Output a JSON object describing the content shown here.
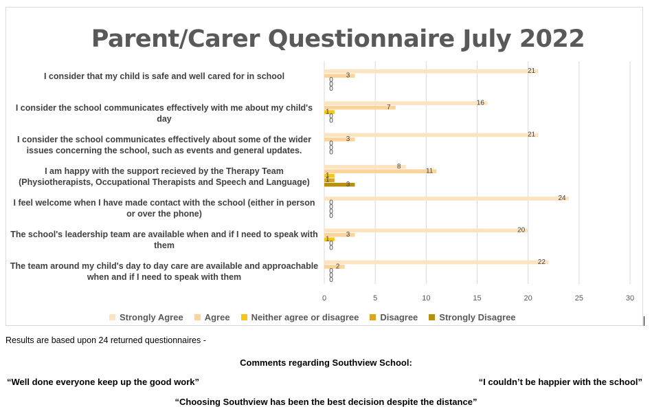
{
  "chart_data": {
    "type": "bar",
    "orientation": "horizontal",
    "title": "Parent/Carer Questionnaire July 2022",
    "categories": [
      "I consider that my child is safe and well cared for in school",
      "I consider the school communicates effectively with me about my child's day",
      "I consider the school communicates effectively about some of the wider issues concerning the school, such as events and general updates.",
      "I am happy with the support recieved by the Therapy Team (Physiotherapists, Occupational Therapists and Speech and Language)",
      "I feel welcome when I have made contact with the school (either in person or over the phone)",
      "The school's leadership team are available when and if I need to speak with them",
      "The team around my child's day to day care are available and approachable when and if I need to speak with them"
    ],
    "series": [
      {
        "name": "Strongly Agree",
        "color": "#fde3c0",
        "values": [
          21,
          16,
          21,
          8,
          24,
          20,
          22
        ]
      },
      {
        "name": "Agree",
        "color": "#fcd39a",
        "values": [
          3,
          7,
          3,
          11,
          0,
          3,
          2
        ]
      },
      {
        "name": "Neither agree or disagree",
        "color": "#f5c518",
        "values": [
          0,
          1,
          0,
          1,
          0,
          1,
          0
        ]
      },
      {
        "name": "Disagree",
        "color": "#dba520",
        "values": [
          0,
          0,
          0,
          1,
          0,
          0,
          0
        ]
      },
      {
        "name": "Strongly Disagree",
        "color": "#b8900e",
        "values": [
          0,
          0,
          0,
          3,
          0,
          0,
          0
        ]
      }
    ],
    "xlim": [
      0,
      30
    ],
    "xticks": [
      0,
      5,
      10,
      15,
      20,
      25,
      30
    ],
    "grid": true,
    "legend": "bottom",
    "data_labels": true
  },
  "notes": {
    "results": "Results are based upon 24 returned questionnaires -",
    "comments_heading": "Comments regarding Southview School:",
    "quote_1": "“Well done everyone keep up the good work”",
    "quote_2": "“I couldn’t be happier with the school”",
    "quote_3": "“Choosing Southview has been the best decision despite the distance”"
  }
}
